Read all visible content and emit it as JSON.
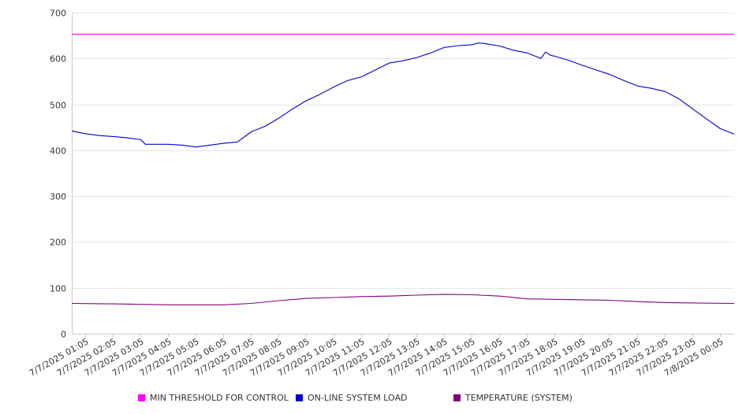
{
  "chart_data": {
    "type": "line",
    "title": "",
    "xlabel": "",
    "ylabel": "",
    "ylim": [
      0,
      700
    ],
    "yticks": [
      0,
      100,
      200,
      300,
      400,
      500,
      600,
      700
    ],
    "grid": true,
    "legend_position": "bottom",
    "x_tick_labels": [
      "7/7/2025 01:05",
      "7/7/2025 02:05",
      "7/7/2025 03:05",
      "7/7/2025 04:05",
      "7/7/2025 05:05",
      "7/7/2025 06:05",
      "7/7/2025 07:05",
      "7/7/2025 08:05",
      "7/7/2025 09:05",
      "7/7/2025 10:05",
      "7/7/2025 11:05",
      "7/7/2025 12:05",
      "7/7/2025 13:05",
      "7/7/2025 14:05",
      "7/7/2025 15:05",
      "7/7/2025 16:05",
      "7/7/2025 17:05",
      "7/7/2025 18:05",
      "7/7/2025 19:05",
      "7/7/2025 20:05",
      "7/7/2025 21:05",
      "7/7/2025 22:05",
      "7/7/2025 23:05",
      "7/8/2025 00:05"
    ],
    "x_range": [
      "7/7/2025 00:35",
      "7/8/2025 00:35"
    ],
    "series": [
      {
        "name": "MIN THRESHOLD FOR CONTROL",
        "color": "#ff00ff",
        "x": [
          "7/7/2025 00:35",
          "7/8/2025 00:35"
        ],
        "values": [
          653,
          653
        ]
      },
      {
        "name": "ON-LINE SYSTEM LOAD",
        "color": "#0000cc",
        "x": [
          "7/7/2025 00:35",
          "7/7/2025 01:05",
          "7/7/2025 01:35",
          "7/7/2025 02:05",
          "7/7/2025 02:35",
          "7/7/2025 03:05",
          "7/7/2025 03:15",
          "7/7/2025 03:35",
          "7/7/2025 04:05",
          "7/7/2025 04:35",
          "7/7/2025 05:05",
          "7/7/2025 05:35",
          "7/7/2025 06:05",
          "7/7/2025 06:35",
          "7/7/2025 07:05",
          "7/7/2025 07:35",
          "7/7/2025 08:05",
          "7/7/2025 08:35",
          "7/7/2025 09:05",
          "7/7/2025 09:35",
          "7/7/2025 10:05",
          "7/7/2025 10:35",
          "7/7/2025 11:05",
          "7/7/2025 11:35",
          "7/7/2025 12:05",
          "7/7/2025 12:35",
          "7/7/2025 13:05",
          "7/7/2025 13:35",
          "7/7/2025 14:05",
          "7/7/2025 14:35",
          "7/7/2025 15:05",
          "7/7/2025 15:20",
          "7/7/2025 15:35",
          "7/7/2025 16:05",
          "7/7/2025 16:35",
          "7/7/2025 17:05",
          "7/7/2025 17:35",
          "7/7/2025 17:45",
          "7/7/2025 17:55",
          "7/7/2025 18:05",
          "7/7/2025 18:35",
          "7/7/2025 19:05",
          "7/7/2025 19:35",
          "7/7/2025 20:05",
          "7/7/2025 20:35",
          "7/7/2025 21:05",
          "7/7/2025 21:35",
          "7/7/2025 22:05",
          "7/7/2025 22:35",
          "7/7/2025 23:05",
          "7/7/2025 23:35",
          "7/8/2025 00:05",
          "7/8/2025 00:35"
        ],
        "values": [
          442,
          436,
          432,
          430,
          427,
          423,
          413,
          413,
          413,
          411,
          407,
          411,
          415,
          418,
          440,
          452,
          470,
          490,
          508,
          522,
          538,
          552,
          560,
          575,
          590,
          595,
          602,
          612,
          624,
          628,
          630,
          634,
          632,
          627,
          618,
          612,
          600,
          614,
          607,
          605,
          596,
          585,
          575,
          565,
          552,
          540,
          535,
          528,
          512,
          490,
          468,
          447,
          435
        ]
      },
      {
        "name": "TEMPERATURE (SYSTEM)",
        "color": "#800080",
        "x": [
          "7/7/2025 00:35",
          "7/7/2025 02:05",
          "7/7/2025 04:05",
          "7/7/2025 06:05",
          "7/7/2025 07:05",
          "7/7/2025 08:05",
          "7/7/2025 09:05",
          "7/7/2025 10:05",
          "7/7/2025 11:05",
          "7/7/2025 12:05",
          "7/7/2025 13:05",
          "7/7/2025 14:05",
          "7/7/2025 15:05",
          "7/7/2025 16:05",
          "7/7/2025 17:05",
          "7/7/2025 18:05",
          "7/7/2025 19:05",
          "7/7/2025 20:05",
          "7/7/2025 21:05",
          "7/7/2025 22:05",
          "7/7/2025 23:05",
          "7/8/2025 00:35"
        ],
        "values": [
          66,
          65,
          63,
          63,
          66,
          72,
          77,
          79,
          81,
          82,
          84,
          86,
          85,
          82,
          76,
          75,
          74,
          73,
          70,
          68,
          67,
          66
        ]
      }
    ]
  }
}
